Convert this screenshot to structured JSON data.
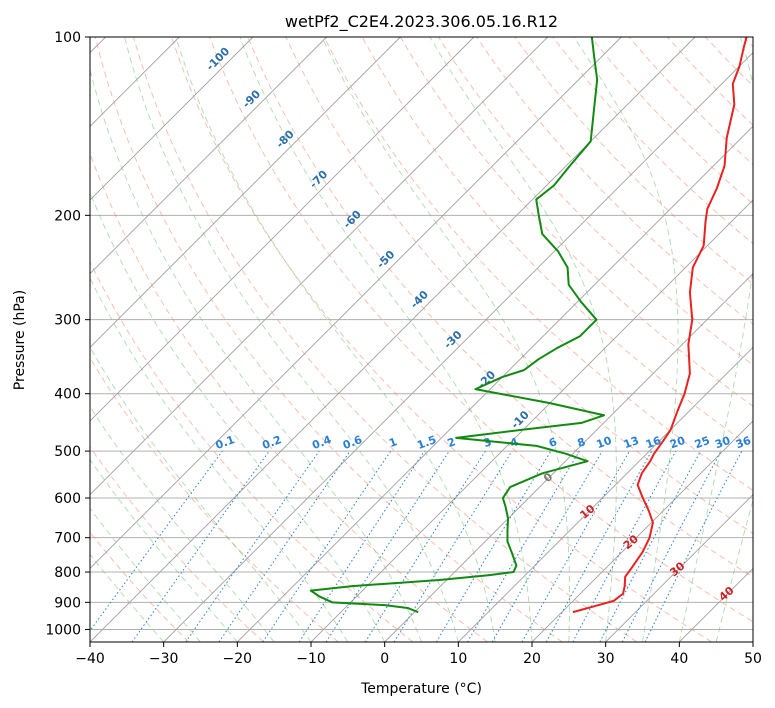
{
  "chart_data": {
    "type": "line",
    "title": "wetPf2_C2E4.2023.306.05.16.R12",
    "xlabel": "Temperature (°C)",
    "ylabel": "Pressure (hPa)",
    "xlim": [
      -40,
      50
    ],
    "ylim": [
      1050,
      100
    ],
    "x_ticks": [
      -40,
      -30,
      -20,
      -10,
      0,
      10,
      20,
      30,
      40,
      50
    ],
    "y_ticks": [
      100,
      200,
      300,
      400,
      500,
      600,
      700,
      800,
      900,
      1000
    ],
    "skew_note": "skew-T log-p diagram",
    "colors": {
      "temperature": "#e8231f",
      "dewpoint": "#128a12",
      "dry_adiabat": "#f08060",
      "moist_adiabat": "#6cbf6c",
      "mixing_ratio": "#2a7fd4",
      "isotherm": "#a0a0a0",
      "isotherm_label": "#2b6fa8",
      "wetbulb_label": "#cc2222",
      "zero_label": "#7a7a7a",
      "grid": "#b0b0b0"
    },
    "series": [
      {
        "name": "temperature",
        "points": [
          [
            21.5,
            935
          ],
          [
            23.5,
            915
          ],
          [
            25.5,
            895
          ],
          [
            25.8,
            870
          ],
          [
            25.0,
            845
          ],
          [
            23.8,
            815
          ],
          [
            23.5,
            790
          ],
          [
            22.8,
            740
          ],
          [
            21.8,
            700
          ],
          [
            20.2,
            660
          ],
          [
            18.0,
            630
          ],
          [
            15.5,
            600
          ],
          [
            13.0,
            570
          ],
          [
            12.0,
            545
          ],
          [
            11.5,
            520
          ],
          [
            11.0,
            505
          ],
          [
            10.5,
            480
          ],
          [
            10.0,
            460
          ],
          [
            8.5,
            430
          ],
          [
            7.0,
            400
          ],
          [
            5.0,
            370
          ],
          [
            0.8,
            330
          ],
          [
            -2.0,
            300
          ],
          [
            -6.0,
            270
          ],
          [
            -9.0,
            245
          ],
          [
            -10.5,
            225
          ],
          [
            -13.5,
            205
          ],
          [
            -15.0,
            195
          ],
          [
            -16.5,
            180
          ],
          [
            -18.5,
            165
          ],
          [
            -22.0,
            148
          ],
          [
            -25.5,
            130
          ],
          [
            -28.5,
            120
          ],
          [
            -30.0,
            112
          ],
          [
            -32.0,
            104
          ],
          [
            -33.0,
            100
          ]
        ]
      },
      {
        "name": "dewpoint",
        "points": [
          [
            0.5,
            935
          ],
          [
            -1.5,
            920
          ],
          [
            -5.0,
            910
          ],
          [
            -12.5,
            900
          ],
          [
            -15.0,
            880
          ],
          [
            -17.0,
            860
          ],
          [
            -12.0,
            845
          ],
          [
            -1.0,
            825
          ],
          [
            5.0,
            810
          ],
          [
            8.0,
            800
          ],
          [
            7.5,
            780
          ],
          [
            5.0,
            740
          ],
          [
            3.0,
            710
          ],
          [
            1.5,
            680
          ],
          [
            0.0,
            650
          ],
          [
            -2.0,
            620
          ],
          [
            -3.5,
            600
          ],
          [
            -4.0,
            575
          ],
          [
            -1.5,
            545
          ],
          [
            3.0,
            520
          ],
          [
            -1.0,
            505
          ],
          [
            -6.0,
            490
          ],
          [
            -18.0,
            475
          ],
          [
            -10.0,
            460
          ],
          [
            -3.0,
            448
          ],
          [
            -1.0,
            435
          ],
          [
            -10.0,
            415
          ],
          [
            -22.0,
            393
          ],
          [
            -20.0,
            375
          ],
          [
            -18.0,
            365
          ],
          [
            -17.5,
            350
          ],
          [
            -16.5,
            335
          ],
          [
            -15.0,
            320
          ],
          [
            -15.0,
            300
          ],
          [
            -19.5,
            280
          ],
          [
            -23.5,
            262
          ],
          [
            -26.0,
            245
          ],
          [
            -29.5,
            230
          ],
          [
            -34.0,
            215
          ],
          [
            -37.0,
            200
          ],
          [
            -39.5,
            188
          ],
          [
            -39.0,
            178
          ],
          [
            -39.5,
            165
          ],
          [
            -40.0,
            150
          ],
          [
            -44.0,
            132
          ],
          [
            -47.5,
            118
          ],
          [
            -51.0,
            108
          ],
          [
            -54.0,
            100
          ]
        ]
      }
    ],
    "isotherm_labels": [
      "-100",
      "-90",
      "-80",
      "-70",
      "-60",
      "-50",
      "-40",
      "-30",
      "-20",
      "-10"
    ],
    "mixing_ratio_labels": [
      "0.1",
      "0.2",
      "0.4",
      "0.6",
      "1",
      "1.5",
      "2",
      "3",
      "4",
      "6",
      "8",
      "10",
      "13",
      "16",
      "20",
      "25",
      "30",
      "36"
    ],
    "wetbulb_labels": [
      "0",
      "10",
      "20",
      "30",
      "40"
    ]
  }
}
